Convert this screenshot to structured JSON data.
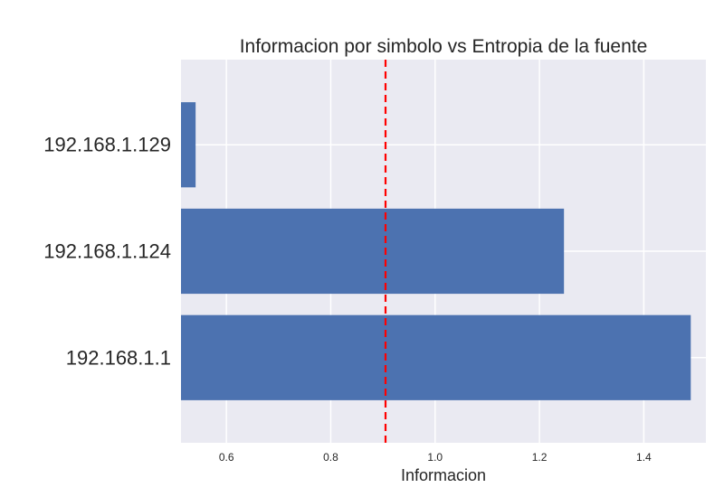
{
  "chart_data": {
    "type": "bar",
    "orientation": "horizontal",
    "title": "Informacion por simbolo vs Entropia de la fuente",
    "xlabel": "Informacion",
    "ylabel": "",
    "categories": [
      "192.168.1.1",
      "192.168.1.124",
      "192.168.1.129"
    ],
    "values": [
      1.49,
      1.247,
      0.541
    ],
    "xlim": [
      0.513,
      1.519
    ],
    "xticks": [
      0.6,
      0.8,
      1.0,
      1.2,
      1.4
    ],
    "xtick_labels": [
      "0.6",
      "0.8",
      "1.0",
      "1.2",
      "1.4"
    ],
    "reference_line": {
      "value": 0.905,
      "style": "dashed",
      "color": "#ff0000"
    },
    "grid": true,
    "legend": "none",
    "colors": {
      "bar": "#4c72b0",
      "background": "#eaeaf2",
      "grid": "#ffffff"
    }
  }
}
